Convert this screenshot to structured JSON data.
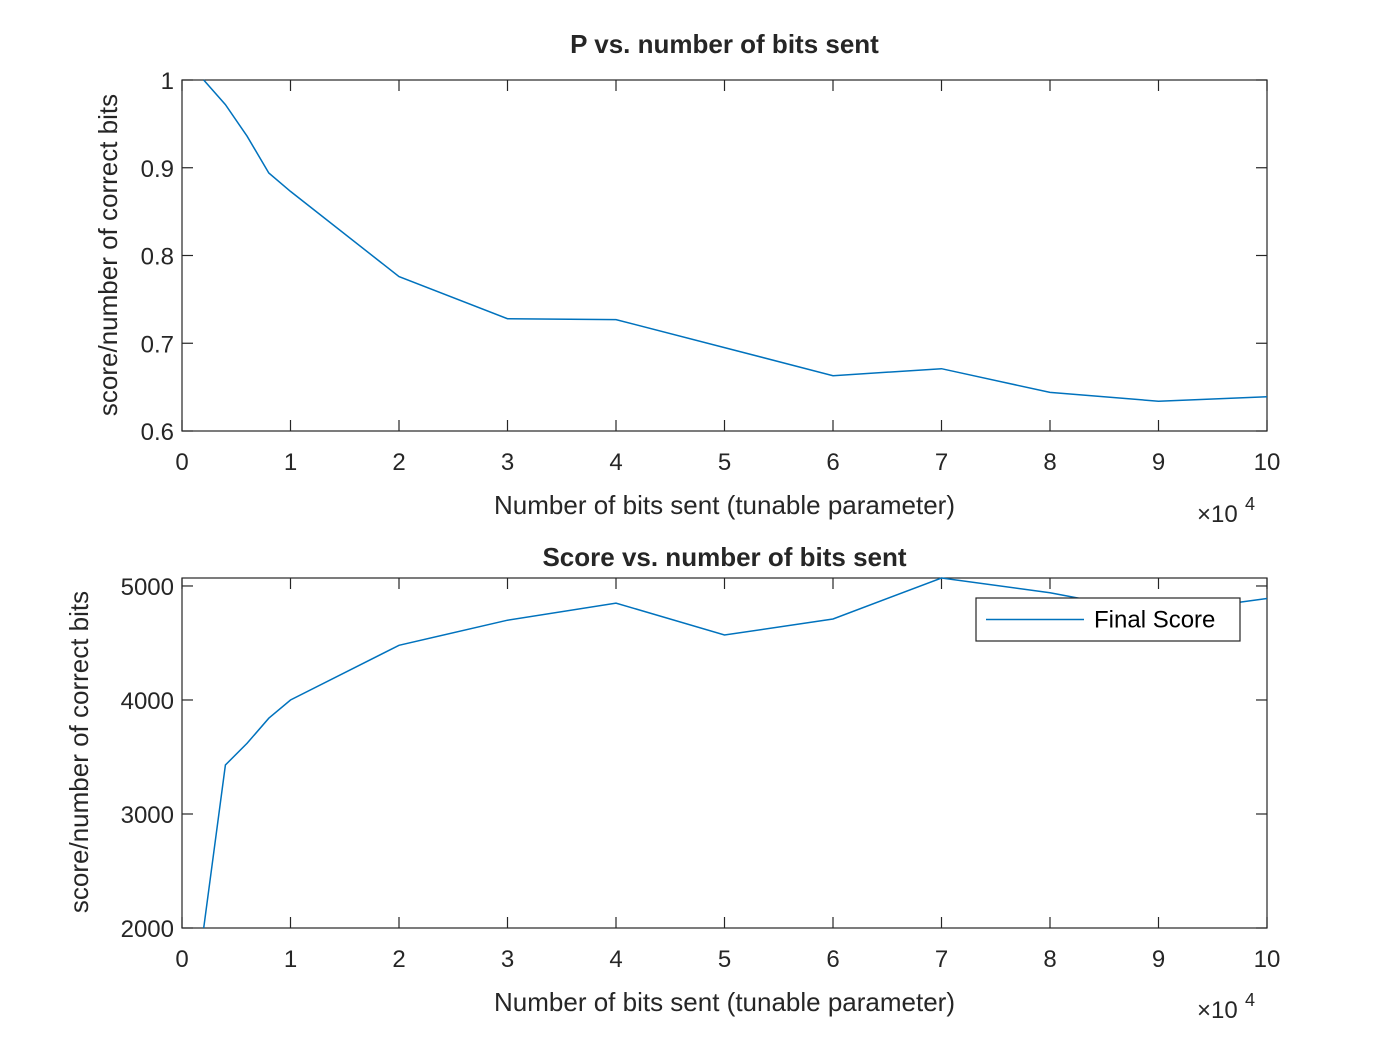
{
  "chart_data": [
    {
      "type": "line",
      "title": "P vs. number of bits sent",
      "xlabel": "Number of bits sent (tunable parameter)",
      "ylabel": "score/number of correct bits",
      "x_exponent_base": "×10",
      "x_exponent_power": "4",
      "xlim": [
        0,
        100000
      ],
      "ylim": [
        0.6,
        1.0
      ],
      "x_ticks": [
        0,
        10000,
        20000,
        30000,
        40000,
        50000,
        60000,
        70000,
        80000,
        90000,
        100000
      ],
      "x_tick_labels": [
        "0",
        "1",
        "2",
        "3",
        "4",
        "5",
        "6",
        "7",
        "8",
        "9",
        "10"
      ],
      "y_ticks": [
        0.6,
        0.7,
        0.8,
        0.9,
        1.0
      ],
      "y_tick_labels": [
        "0.6",
        "0.7",
        "0.8",
        "0.9",
        "1"
      ],
      "grid": false,
      "color": "#0072BD",
      "series": [
        {
          "x": [
            2000,
            4000,
            6000,
            8000,
            10000,
            20000,
            30000,
            40000,
            50000,
            60000,
            70000,
            80000,
            90000,
            100000
          ],
          "values": [
            1.0,
            0.972,
            0.936,
            0.894,
            0.873,
            0.776,
            0.728,
            0.727,
            0.695,
            0.663,
            0.671,
            0.644,
            0.634,
            0.639
          ]
        }
      ]
    },
    {
      "type": "line",
      "title": "Score vs. number of bits sent",
      "xlabel": "Number of bits sent (tunable parameter)",
      "ylabel": "score/number of correct bits",
      "x_exponent_base": "×10",
      "x_exponent_power": "4",
      "xlim": [
        0,
        100000
      ],
      "ylim": [
        2000,
        5070
      ],
      "x_ticks": [
        0,
        10000,
        20000,
        30000,
        40000,
        50000,
        60000,
        70000,
        80000,
        90000,
        100000
      ],
      "x_tick_labels": [
        "0",
        "1",
        "2",
        "3",
        "4",
        "5",
        "6",
        "7",
        "8",
        "9",
        "10"
      ],
      "y_ticks": [
        2000,
        3000,
        4000,
        5000
      ],
      "y_tick_labels": [
        "2000",
        "3000",
        "4000",
        "5000"
      ],
      "grid": false,
      "legend_position": "top-right",
      "color": "#0072BD",
      "series": [
        {
          "name": "Final Score",
          "x": [
            2000,
            4000,
            6000,
            8000,
            10000,
            20000,
            30000,
            40000,
            50000,
            60000,
            70000,
            80000,
            90000,
            100000
          ],
          "values": [
            2000,
            3430,
            3620,
            3840,
            4000,
            4480,
            4700,
            4850,
            4570,
            4710,
            5070,
            4940,
            4760,
            4890
          ]
        }
      ]
    }
  ]
}
